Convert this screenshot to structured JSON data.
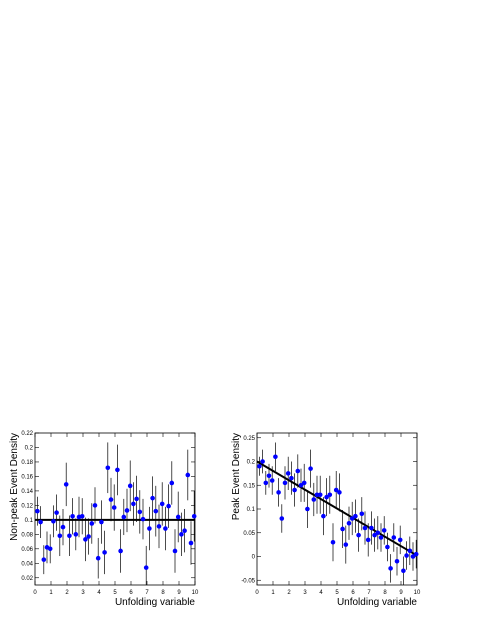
{
  "chart_data": [
    {
      "type": "scatter",
      "xlabel": "Unfolding variable",
      "ylabel": "Non-peak Event Density",
      "xlim": [
        0,
        10
      ],
      "ylim": [
        0.01,
        0.22
      ],
      "xticks": [
        "0",
        "1",
        "2",
        "3",
        "4",
        "5",
        "6",
        "7",
        "8",
        "9",
        "10"
      ],
      "yticks": [
        "0.02",
        "0.04",
        "0.06",
        "0.08",
        "0.1",
        "0.12",
        "0.14",
        "0.16",
        "0.18",
        "0.2",
        "0.22"
      ],
      "yticks_values": [
        0.02,
        0.04,
        0.06,
        0.08,
        0.1,
        0.12,
        0.14,
        0.16,
        0.18,
        0.2,
        0.22
      ],
      "marker_color": "#0000ff",
      "fit_line": {
        "x": [
          0,
          10
        ],
        "y": [
          0.1,
          0.1
        ],
        "color": "#000000"
      },
      "series": [
        {
          "x": [
            0.15,
            0.35,
            0.55,
            0.75,
            0.95,
            1.15,
            1.35,
            1.55,
            1.75,
            1.95,
            2.15,
            2.35,
            2.55,
            2.75,
            2.95,
            3.15,
            3.35,
            3.55,
            3.75,
            3.95,
            4.15,
            4.35,
            4.55,
            4.75,
            4.95,
            5.15,
            5.35,
            5.55,
            5.75,
            5.95,
            6.15,
            6.35,
            6.55,
            6.75,
            6.95,
            7.15,
            7.35,
            7.55,
            7.75,
            7.95,
            8.15,
            8.35,
            8.55,
            8.75,
            8.95,
            9.15,
            9.35,
            9.55,
            9.75,
            9.95
          ],
          "y": [
            0.112,
            0.097,
            0.045,
            0.062,
            0.06,
            0.098,
            0.11,
            0.078,
            0.09,
            0.149,
            0.078,
            0.105,
            0.08,
            0.104,
            0.105,
            0.073,
            0.077,
            0.095,
            0.12,
            0.047,
            0.097,
            0.055,
            0.172,
            0.128,
            0.117,
            0.169,
            0.057,
            0.104,
            0.113,
            0.147,
            0.122,
            0.129,
            0.111,
            0.101,
            0.034,
            0.088,
            0.13,
            0.112,
            0.091,
            0.122,
            0.088,
            0.119,
            0.151,
            0.057,
            0.104,
            0.08,
            0.085,
            0.162,
            0.068,
            0.105
          ],
          "err": [
            0.02,
            0.022,
            0.02,
            0.022,
            0.02,
            0.022,
            0.025,
            0.028,
            0.025,
            0.03,
            0.028,
            0.025,
            0.022,
            0.028,
            0.025,
            0.03,
            0.025,
            0.028,
            0.025,
            0.028,
            0.03,
            0.03,
            0.035,
            0.03,
            0.032,
            0.035,
            0.03,
            0.025,
            0.03,
            0.035,
            0.03,
            0.032,
            0.03,
            0.028,
            0.03,
            0.03,
            0.03,
            0.035,
            0.03,
            0.03,
            0.03,
            0.03,
            0.03,
            0.03,
            0.035,
            0.03,
            0.03,
            0.035,
            0.03,
            0.035
          ]
        }
      ]
    },
    {
      "type": "scatter",
      "xlabel": "Unfolding variable",
      "ylabel": "Peak Event Density",
      "xlim": [
        0,
        10
      ],
      "ylim": [
        -0.06,
        0.26
      ],
      "xticks": [
        "0",
        "1",
        "2",
        "3",
        "4",
        "5",
        "6",
        "7",
        "8",
        "9",
        "10"
      ],
      "yticks": [
        "-0.05",
        "0",
        "0.05",
        "0.1",
        "0.15",
        "0.2",
        "0.25"
      ],
      "yticks_values": [
        -0.05,
        0,
        0.05,
        0.1,
        0.15,
        0.2,
        0.25
      ],
      "marker_color": "#0000ff",
      "fit_line": {
        "x": [
          0,
          10
        ],
        "y": [
          0.2,
          0.002
        ],
        "color": "#000000"
      },
      "series": [
        {
          "x": [
            0.15,
            0.35,
            0.55,
            0.75,
            0.95,
            1.15,
            1.35,
            1.55,
            1.75,
            1.95,
            2.15,
            2.35,
            2.55,
            2.75,
            2.95,
            3.15,
            3.35,
            3.55,
            3.75,
            3.95,
            4.15,
            4.35,
            4.55,
            4.75,
            4.95,
            5.15,
            5.35,
            5.55,
            5.75,
            5.95,
            6.15,
            6.35,
            6.55,
            6.75,
            6.95,
            7.15,
            7.35,
            7.55,
            7.75,
            7.95,
            8.15,
            8.35,
            8.55,
            8.75,
            8.95,
            9.15,
            9.35,
            9.55,
            9.75,
            9.95
          ],
          "y": [
            0.19,
            0.2,
            0.155,
            0.17,
            0.16,
            0.21,
            0.135,
            0.08,
            0.155,
            0.175,
            0.165,
            0.14,
            0.18,
            0.15,
            0.155,
            0.1,
            0.185,
            0.12,
            0.13,
            0.13,
            0.085,
            0.125,
            0.13,
            0.03,
            0.14,
            0.135,
            0.058,
            0.025,
            0.07,
            0.08,
            0.085,
            0.045,
            0.09,
            0.06,
            0.035,
            0.06,
            0.045,
            0.05,
            0.04,
            0.055,
            0.02,
            -0.025,
            0.04,
            -0.01,
            0.035,
            -0.03,
            0.002,
            0.012,
            0.0,
            0.005
          ],
          "err": [
            0.02,
            0.025,
            0.025,
            0.025,
            0.03,
            0.03,
            0.03,
            0.03,
            0.035,
            0.035,
            0.035,
            0.035,
            0.035,
            0.035,
            0.04,
            0.04,
            0.04,
            0.035,
            0.04,
            0.04,
            0.04,
            0.04,
            0.04,
            0.04,
            0.04,
            0.04,
            0.04,
            0.04,
            0.035,
            0.035,
            0.035,
            0.035,
            0.035,
            0.035,
            0.035,
            0.035,
            0.035,
            0.035,
            0.03,
            0.03,
            0.03,
            0.03,
            0.03,
            0.03,
            0.03,
            0.03,
            0.03,
            0.03,
            0.03,
            0.03
          ]
        }
      ]
    }
  ]
}
